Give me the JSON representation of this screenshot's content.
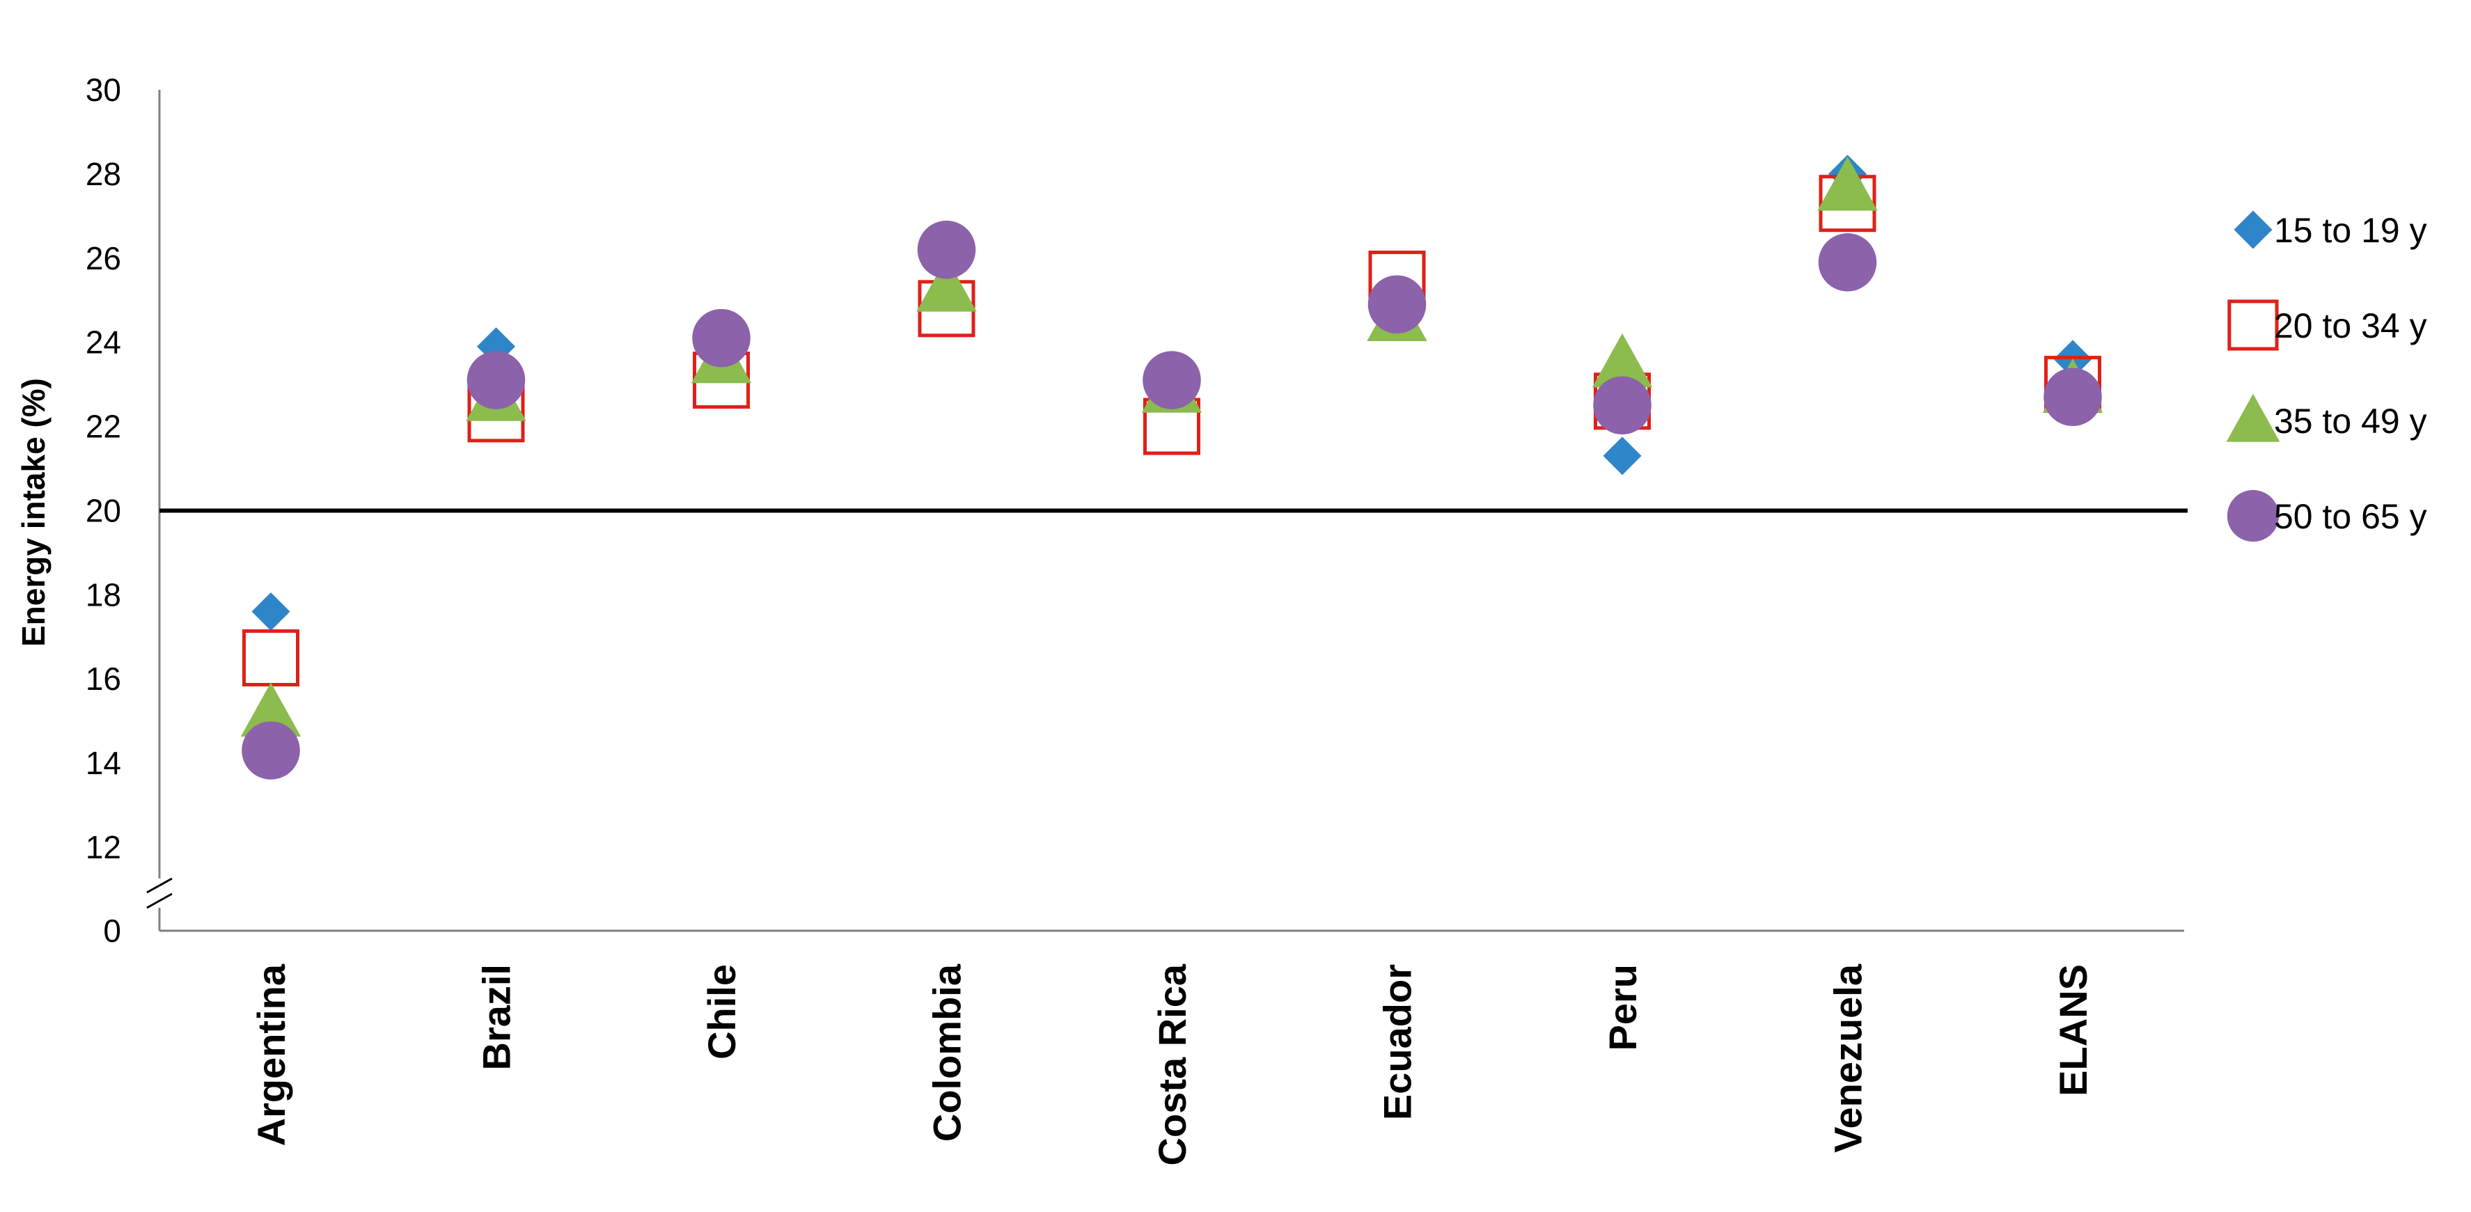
{
  "chart_data": {
    "type": "scatter",
    "title": "",
    "xlabel": "",
    "ylabel": "Energy intake (%)",
    "categories": [
      "Argentina",
      "Brazil",
      "Chile",
      "Colombia",
      "Costa Rica",
      "Ecuador",
      "Peru",
      "Venezuela",
      "ELANS"
    ],
    "y_ticks": [
      "30",
      "28",
      "26",
      "24",
      "22",
      "20",
      "18",
      "16",
      "14",
      "12",
      "0"
    ],
    "ylim": [
      12,
      30
    ],
    "y_axis_break": "0 // 12",
    "reference_line": 20,
    "legend_position": "right",
    "series": [
      {
        "name": "15 to 19 y",
        "marker": "diamond",
        "color": "#2e85c8",
        "values": [
          17.6,
          23.9,
          23.7,
          26.4,
          22.9,
          24.7,
          21.3,
          28.0,
          23.6
        ]
      },
      {
        "name": "20 to 34 y",
        "marker": "square-open",
        "color": "#e0201a",
        "values": [
          16.5,
          22.3,
          23.1,
          24.8,
          22.0,
          25.5,
          22.6,
          27.3,
          23.0
        ]
      },
      {
        "name": "35 to 49 y",
        "marker": "triangle",
        "color": "#8cbb4e",
        "values": [
          15.2,
          22.7,
          23.6,
          25.3,
          22.9,
          24.6,
          23.5,
          27.7,
          22.9
        ]
      },
      {
        "name": "50 to 65 y",
        "marker": "circle",
        "color": "#8c62aa",
        "values": [
          14.3,
          23.1,
          24.1,
          26.2,
          23.1,
          24.9,
          22.5,
          25.9,
          22.7
        ]
      }
    ]
  }
}
